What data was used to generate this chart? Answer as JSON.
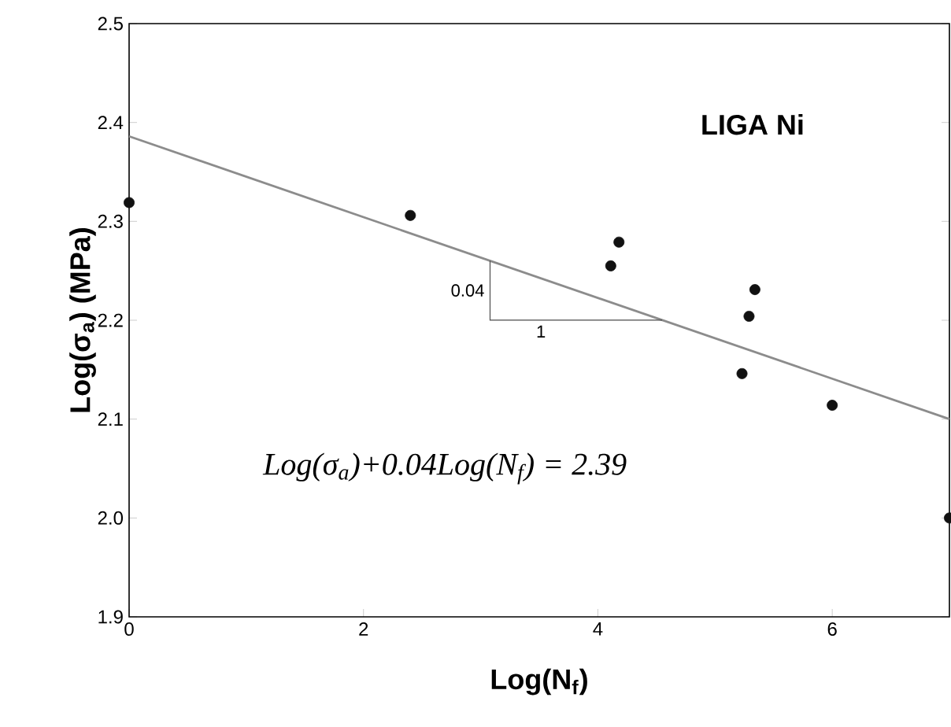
{
  "chart_data": {
    "type": "scatter",
    "xlabel": "Log(N$_{f}$)",
    "ylabel": "Log(σ$_{a}$) (MPa)",
    "xlim": [
      0,
      7
    ],
    "ylim": [
      1.9,
      2.5
    ],
    "xticks": [
      0,
      2,
      4,
      6
    ],
    "yticks": [
      {
        "value": 1.9,
        "label": "1.9"
      },
      {
        "value": 2.0,
        "label": "2.0"
      },
      {
        "value": 2.1,
        "label": "2.1"
      },
      {
        "value": 2.2,
        "label": "2.2"
      },
      {
        "value": 2.3,
        "label": "2.3"
      },
      {
        "value": 2.4,
        "label": "2.4"
      },
      {
        "value": 2.5,
        "label": "2.5"
      }
    ],
    "grid": false,
    "series": [
      {
        "marker": "circle",
        "color": "#111111",
        "x": [
          0,
          2.4,
          4.11,
          4.18,
          5.23,
          5.29,
          5.34,
          6.0,
          7.0
        ],
        "values": [
          2.319,
          2.306,
          2.255,
          2.279,
          2.146,
          2.204,
          2.231,
          2.114,
          2.0
        ]
      },
      {
        "type": "line",
        "marker": "none",
        "color": "#8c8c8c",
        "x": [
          0,
          7
        ],
        "values": [
          2.386,
          2.1
        ]
      }
    ],
    "annotations": [
      "LIGA Ni",
      "0.04",
      "1",
      "*Log(σ$_{a}$)+0.04Log(N$_{f}$) = 2.39*"
    ]
  }
}
